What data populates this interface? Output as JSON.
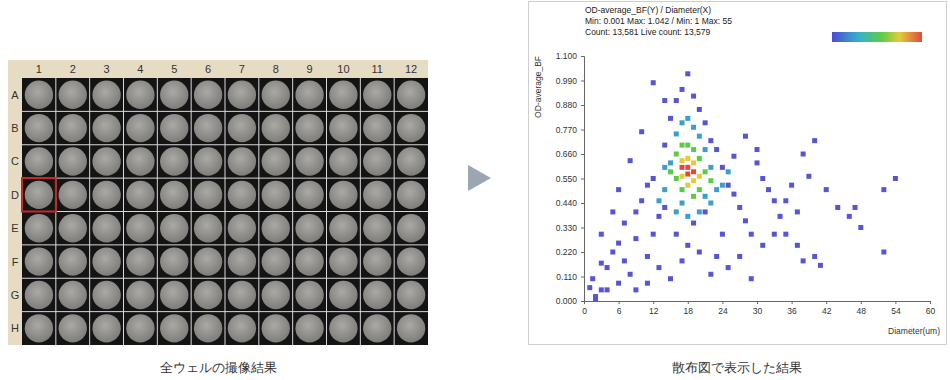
{
  "plate": {
    "columns": [
      "1",
      "2",
      "3",
      "4",
      "5",
      "6",
      "7",
      "8",
      "9",
      "10",
      "11",
      "12"
    ],
    "rows": [
      "A",
      "B",
      "C",
      "D",
      "E",
      "F",
      "G",
      "H"
    ]
  },
  "captions": [
    "全ウェルの撮像結果",
    "散布図で表示した結果"
  ],
  "chart_data": {
    "type": "scatter",
    "annotations": [
      "OD-average_BF(Y) / Diameter(X)",
      "Min: 0.001 Max: 1.042 / Min: 1 Max: 55",
      "Count: 13,581 Live count: 13,579"
    ],
    "xlabel": "Diameter(um)",
    "ylabel": "OD-average_BF",
    "marker": "square",
    "grid": false,
    "xlim": [
      0,
      60
    ],
    "xticks": [
      0,
      6,
      12,
      18,
      24,
      30,
      36,
      42,
      48,
      54,
      60
    ],
    "ylim": [
      0,
      1.1
    ],
    "yticks": [
      {
        "value": 0,
        "label": "0.000"
      },
      {
        "value": 0.11,
        "label": "0.110"
      },
      {
        "value": 0.22,
        "label": "0.220"
      },
      {
        "value": 0.33,
        "label": "0.330"
      },
      {
        "value": 0.44,
        "label": "0.440"
      },
      {
        "value": 0.55,
        "label": "0.550"
      },
      {
        "value": 0.66,
        "label": "0.660"
      },
      {
        "value": 0.77,
        "label": "0.770"
      },
      {
        "value": 0.88,
        "label": "0.880"
      },
      {
        "value": 0.99,
        "label": "0.990"
      },
      {
        "value": 1.1,
        "label": "1.100"
      }
    ],
    "series": [
      {
        "color": "#5555d6",
        "x": [
          2,
          3,
          1.5,
          4,
          5,
          3,
          6,
          7,
          8,
          9,
          10,
          11,
          12,
          13,
          14,
          15,
          16,
          17,
          18,
          19,
          20,
          21,
          22,
          23,
          24,
          25,
          26,
          27,
          28,
          29,
          30,
          31,
          32,
          33,
          34,
          35,
          36,
          37,
          38,
          39,
          40,
          41,
          42,
          44,
          46,
          47,
          48,
          52,
          52,
          54,
          38,
          40,
          28,
          30,
          10,
          8,
          5,
          6,
          12,
          14,
          4,
          2,
          9,
          11,
          13,
          15,
          17,
          20,
          22,
          25,
          27,
          29,
          31,
          26,
          18,
          16,
          14,
          12,
          7,
          3,
          1,
          6,
          9,
          11,
          24,
          33,
          35,
          37,
          23,
          19,
          21
        ],
        "values": [
          0.02,
          0.05,
          0.1,
          0.15,
          0.22,
          0.3,
          0.08,
          0.35,
          0.12,
          0.28,
          0.45,
          0.2,
          0.55,
          0.38,
          0.7,
          0.82,
          0.9,
          0.95,
          1.02,
          0.92,
          0.86,
          0.8,
          0.72,
          0.68,
          0.6,
          0.52,
          0.48,
          0.42,
          0.36,
          0.3,
          0.62,
          0.55,
          0.5,
          0.45,
          0.38,
          0.3,
          0.52,
          0.25,
          0.18,
          0.56,
          0.2,
          0.16,
          0.5,
          0.42,
          0.38,
          0.42,
          0.33,
          0.5,
          0.22,
          0.55,
          0.66,
          0.72,
          0.74,
          0.68,
          0.76,
          0.63,
          0.4,
          0.5,
          0.98,
          0.9,
          0.05,
          0.001,
          0.05,
          0.08,
          0.15,
          0.1,
          0.18,
          0.22,
          0.12,
          0.15,
          0.2,
          0.1,
          0.25,
          0.65,
          0.25,
          0.3,
          0.42,
          0.3,
          0.18,
          0.17,
          0.06,
          0.26,
          0.4,
          0.52,
          0.3,
          0.3,
          0.45,
          0.4,
          0.2,
          0.35,
          0.4
        ]
      },
      {
        "color": "#3a9fd0",
        "x": [
          14,
          15,
          16,
          17,
          18,
          19,
          20,
          21,
          22,
          23,
          22,
          20,
          18,
          16,
          14,
          24,
          13,
          25,
          17,
          21
        ],
        "values": [
          0.5,
          0.62,
          0.75,
          0.8,
          0.82,
          0.78,
          0.74,
          0.68,
          0.6,
          0.5,
          0.44,
          0.4,
          0.38,
          0.4,
          0.6,
          0.52,
          0.45,
          0.58,
          0.44,
          0.47
        ]
      },
      {
        "color": "#5ccc48",
        "x": [
          16,
          16,
          17,
          18,
          19,
          20,
          21,
          20,
          19,
          17,
          15,
          22
        ],
        "values": [
          0.55,
          0.66,
          0.7,
          0.7,
          0.68,
          0.64,
          0.58,
          0.5,
          0.47,
          0.5,
          0.58,
          0.54
        ]
      },
      {
        "color": "#e2cc3a",
        "x": [
          17,
          17,
          18,
          19,
          20,
          18,
          19
        ],
        "values": [
          0.56,
          0.63,
          0.64,
          0.62,
          0.56,
          0.52,
          0.54
        ]
      },
      {
        "color": "#e04a3a",
        "x": [
          18,
          18,
          19,
          17
        ],
        "values": [
          0.57,
          0.6,
          0.58,
          0.6
        ]
      }
    ]
  }
}
